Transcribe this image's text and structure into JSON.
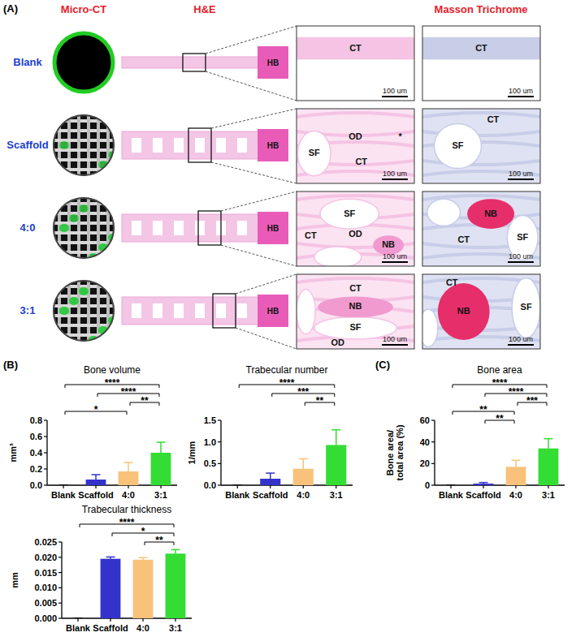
{
  "chart_data": [
    {
      "type": "bar",
      "title": "Bone volume",
      "y_label": "mm³",
      "categories": [
        "Blank",
        "Scaffold",
        "4:0",
        "3:1"
      ],
      "values": [
        0,
        0.07,
        0.17,
        0.4
      ],
      "errors": [
        0,
        0.06,
        0.11,
        0.13
      ],
      "colors": [
        "#000000",
        "#3333cc",
        "#f9c27a",
        "#33dd33"
      ],
      "ylim": [
        0,
        0.8
      ],
      "yticks": [
        {
          "value": 0,
          "label": "0.0"
        },
        {
          "value": 0.2,
          "label": "0.2"
        },
        {
          "value": 0.4,
          "label": "0.4"
        },
        {
          "value": 0.6,
          "label": "0.6"
        },
        {
          "value": 0.8,
          "label": "0.8"
        }
      ],
      "grid": false,
      "comparisons": [
        {
          "groups": [
            "Blank",
            "3:1"
          ],
          "label": "****"
        },
        {
          "groups": [
            "Scaffold",
            "3:1"
          ],
          "label": "****"
        },
        {
          "groups": [
            "4:0",
            "3:1"
          ],
          "label": "**"
        },
        {
          "groups": [
            "Blank",
            "4:0"
          ],
          "label": "*"
        }
      ]
    },
    {
      "type": "bar",
      "title": "Trabecular number",
      "y_label": "1/mm",
      "categories": [
        "Blank",
        "Scaffold",
        "4:0",
        "3:1"
      ],
      "values": [
        0,
        0.15,
        0.38,
        0.93
      ],
      "errors": [
        0,
        0.13,
        0.23,
        0.35
      ],
      "colors": [
        "#000000",
        "#3333cc",
        "#f9c27a",
        "#33dd33"
      ],
      "ylim": [
        0,
        1.5
      ],
      "yticks": [
        {
          "value": 0,
          "label": "0.0"
        },
        {
          "value": 0.5,
          "label": "0.5"
        },
        {
          "value": 1,
          "label": "1.0"
        },
        {
          "value": 1.5,
          "label": "1.5"
        }
      ],
      "grid": false,
      "comparisons": [
        {
          "groups": [
            "Blank",
            "3:1"
          ],
          "label": "****"
        },
        {
          "groups": [
            "Scaffold",
            "3:1"
          ],
          "label": "***"
        },
        {
          "groups": [
            "4:0",
            "3:1"
          ],
          "label": "**"
        }
      ]
    },
    {
      "type": "bar",
      "title": "Trabecular thickness",
      "y_label": "mm",
      "categories": [
        "Blank",
        "Scaffold",
        "4:0",
        "3:1"
      ],
      "values": [
        0,
        0.0195,
        0.0192,
        0.0212
      ],
      "errors": [
        0,
        0.0006,
        0.0007,
        0.0013
      ],
      "colors": [
        "#000000",
        "#3333cc",
        "#f9c27a",
        "#33dd33"
      ],
      "ylim": [
        0,
        0.025
      ],
      "yticks": [
        {
          "value": 0,
          "label": "0.000"
        },
        {
          "value": 0.005,
          "label": "0.005"
        },
        {
          "value": 0.01,
          "label": "0.010"
        },
        {
          "value": 0.015,
          "label": "0.015"
        },
        {
          "value": 0.02,
          "label": "0.020"
        },
        {
          "value": 0.025,
          "label": "0.025"
        }
      ],
      "grid": false,
      "comparisons": [
        {
          "groups": [
            "Blank",
            "3:1"
          ],
          "label": "****"
        },
        {
          "groups": [
            "Scaffold",
            "3:1"
          ],
          "label": "*"
        },
        {
          "groups": [
            "4:0",
            "3:1"
          ],
          "label": "**"
        }
      ]
    },
    {
      "type": "bar",
      "title": "Bone area",
      "y_label": "Bone area/ total area (%)",
      "categories": [
        "Blank",
        "Scaffold",
        "4:0",
        "3:1"
      ],
      "values": [
        0,
        1.5,
        17,
        34
      ],
      "errors": [
        0,
        1,
        6,
        9
      ],
      "colors": [
        "#000000",
        "#3333cc",
        "#f9c27a",
        "#33dd33"
      ],
      "ylim": [
        0,
        60
      ],
      "yticks": [
        0,
        20,
        40,
        60
      ],
      "grid": false,
      "comparisons": [
        {
          "groups": [
            "Blank",
            "3:1"
          ],
          "label": "****"
        },
        {
          "groups": [
            "Scaffold",
            "3:1"
          ],
          "label": "****"
        },
        {
          "groups": [
            "4:0",
            "3:1"
          ],
          "label": "***"
        },
        {
          "groups": [
            "Blank",
            "4:0"
          ],
          "label": "**"
        },
        {
          "groups": [
            "Scaffold",
            "4:0"
          ],
          "label": "**"
        }
      ]
    }
  ],
  "figure": {
    "panel_a_label": "(A)",
    "panel_b_label": "(B)",
    "panel_c_label": "(C)",
    "columns": [
      "Micro-CT",
      "H&E",
      "Masson Trichrome"
    ],
    "scale_bar": "100 um",
    "rows": [
      {
        "name": "Blank",
        "strip_label": "HB",
        "he_labels": [
          "CT"
        ],
        "mt_labels": [
          "CT"
        ]
      },
      {
        "name": "Scaffold",
        "strip_label": "HB",
        "he_labels": [
          "OD",
          "*",
          "SF",
          "CT"
        ],
        "mt_labels": [
          "CT",
          "SF"
        ]
      },
      {
        "name": "4:0",
        "strip_label": "HB",
        "he_labels": [
          "SF",
          "CT",
          "OD",
          "NB"
        ],
        "mt_labels": [
          "NB",
          "CT",
          "SF"
        ]
      },
      {
        "name": "3:1",
        "strip_label": "HB",
        "he_labels": [
          "CT",
          "NB",
          "SF",
          "OD"
        ],
        "mt_labels": [
          "CT",
          "NB",
          "SF"
        ]
      }
    ]
  }
}
